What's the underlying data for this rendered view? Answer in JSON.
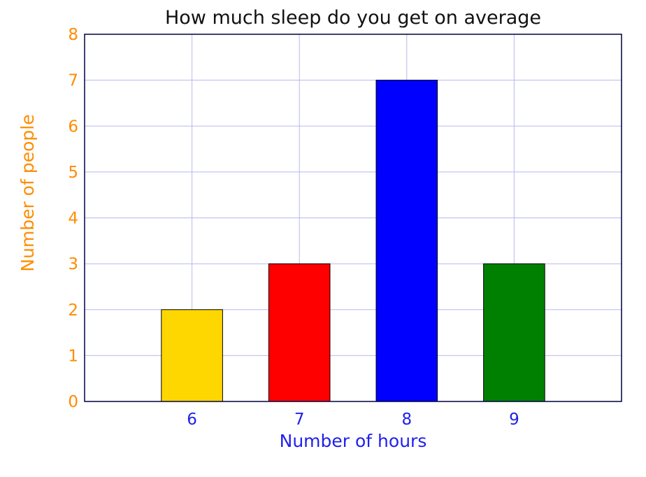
{
  "chart_data": {
    "type": "bar",
    "title": "How much sleep do you get on average",
    "xlabel": "Number of hours",
    "ylabel": "Number of people",
    "categories": [
      "6",
      "7",
      "8",
      "9"
    ],
    "values": [
      2,
      3,
      7,
      3
    ],
    "bar_colors": [
      "#ffd700",
      "#ff0000",
      "#0000ff",
      "#008000"
    ],
    "ylim": [
      0,
      8
    ],
    "xlim": [
      5,
      10
    ],
    "yticks": [
      "0",
      "1",
      "2",
      "3",
      "4",
      "5",
      "6",
      "7",
      "8"
    ],
    "grid": true,
    "legend": "none"
  }
}
